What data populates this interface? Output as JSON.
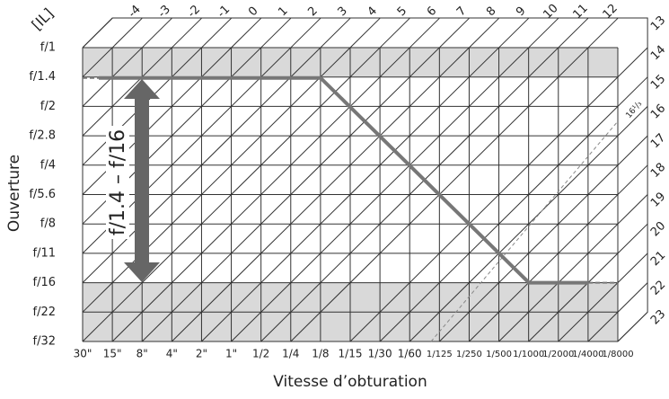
{
  "ev_corner": "[IL]",
  "ev_top": [
    "-4",
    "-3",
    "-2",
    "-1",
    "0",
    "1",
    "2",
    "3",
    "4",
    "5",
    "6",
    "7",
    "8",
    "9",
    "10",
    "11",
    "12"
  ],
  "ev_right": [
    "13",
    "14",
    "15",
    "16",
    "17",
    "18",
    "19",
    "20",
    "21",
    "22",
    "23"
  ],
  "apertures": [
    "f/1",
    "f/1.4",
    "f/2",
    "f/2.8",
    "f/4",
    "f/5.6",
    "f/8",
    "f/11",
    "f/16",
    "f/22",
    "f/32"
  ],
  "shutter_speeds": [
    "30\"",
    "15\"",
    "8\"",
    "4\"",
    "2\"",
    "1\"",
    "1/2",
    "1/4",
    "1/8",
    "1/15",
    "1/30",
    "1/60",
    "1/125",
    "1/250",
    "1/500",
    "1/1000",
    "1/2000",
    "1/4000",
    "1/8000"
  ],
  "y_axis_title": "Ouverture",
  "x_axis_title": "Vitesse d’obturation",
  "range_label": "f/1.4 – f/16",
  "limit_label": "16¹/₃"
}
